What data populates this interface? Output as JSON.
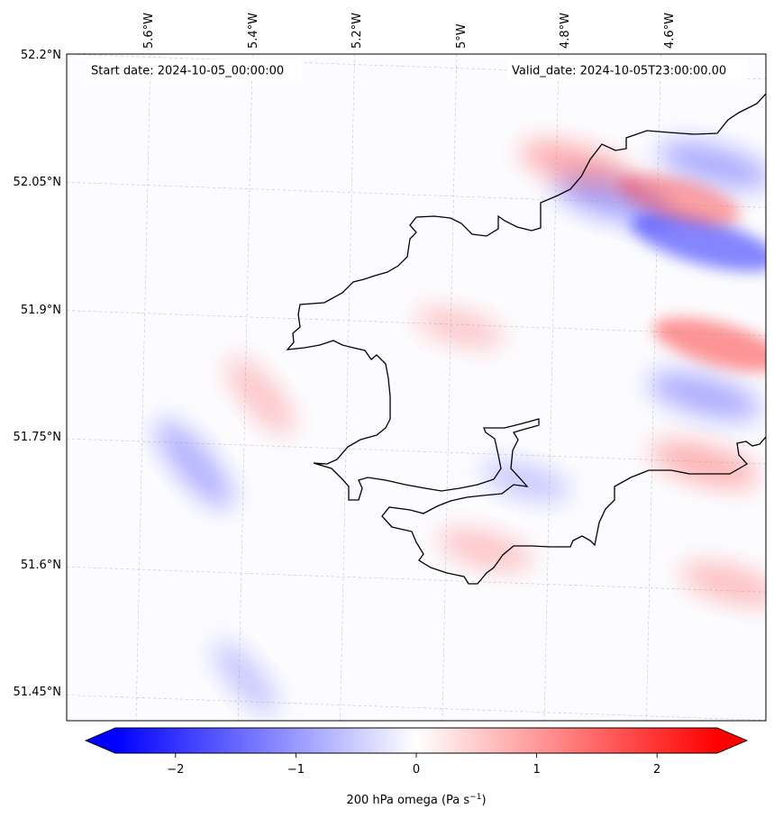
{
  "map": {
    "start_label": "Start date: 2024-10-05_00:00:00",
    "valid_label": "Valid_date: 2024-10-05T23:00:00.00",
    "lon_ticks": [
      "5.6°W",
      "5.4°W",
      "5.2°W",
      "5°W",
      "4.8°W",
      "4.6°W"
    ],
    "lat_ticks": [
      "52.2°N",
      "52.05°N",
      "51.9°N",
      "51.75°N",
      "51.6°N",
      "51.45°N"
    ],
    "lon_range": [
      -5.75,
      -4.38
    ],
    "lat_range": [
      51.42,
      52.2
    ],
    "gridlines": true,
    "coastline_color": "#000000",
    "colormap": [
      "#0000ff",
      "#ffffff",
      "#ff0000"
    ]
  },
  "colorbar": {
    "label": "200 hPa omega (Pa s",
    "label_sup": "−1",
    "label_close": ")",
    "range": [
      -2.5,
      2.5
    ],
    "tick_values": [
      -2,
      -1,
      0,
      1,
      2
    ],
    "tick_labels": [
      "−2",
      "−1",
      "0",
      "1",
      "2"
    ]
  },
  "field_features": [
    {
      "name": "strong negative band",
      "lon": -4.5,
      "lat": 51.98,
      "value": -1.6
    },
    {
      "name": "negative band",
      "lon": -4.68,
      "lat": 52.03,
      "value": -1.0
    },
    {
      "name": "negative cell",
      "lon": -4.48,
      "lat": 52.07,
      "value": -0.9
    },
    {
      "name": "negative cell",
      "lon": -4.5,
      "lat": 51.8,
      "value": -0.9
    },
    {
      "name": "positive band",
      "lon": -4.47,
      "lat": 51.86,
      "value": 1.3
    },
    {
      "name": "positive band",
      "lon": -4.55,
      "lat": 52.03,
      "value": 1.1
    },
    {
      "name": "positive cell",
      "lon": -4.75,
      "lat": 52.07,
      "value": 0.9
    },
    {
      "name": "positive cell",
      "lon": -4.5,
      "lat": 51.72,
      "value": 0.8
    },
    {
      "name": "positive cell",
      "lon": -4.45,
      "lat": 51.58,
      "value": 0.6
    },
    {
      "name": "positive patch",
      "lon": -4.93,
      "lat": 51.62,
      "value": 0.5
    },
    {
      "name": "positive patch",
      "lon": -4.98,
      "lat": 51.88,
      "value": 0.4
    },
    {
      "name": "negative trough",
      "lon": -5.5,
      "lat": 51.72,
      "value": -0.8
    },
    {
      "name": "positive ridge",
      "lon": -5.37,
      "lat": 51.8,
      "value": 0.5
    },
    {
      "name": "negative patch",
      "lon": -4.85,
      "lat": 51.7,
      "value": -0.4
    },
    {
      "name": "negative patch",
      "lon": -5.4,
      "lat": 51.47,
      "value": -0.4
    }
  ]
}
